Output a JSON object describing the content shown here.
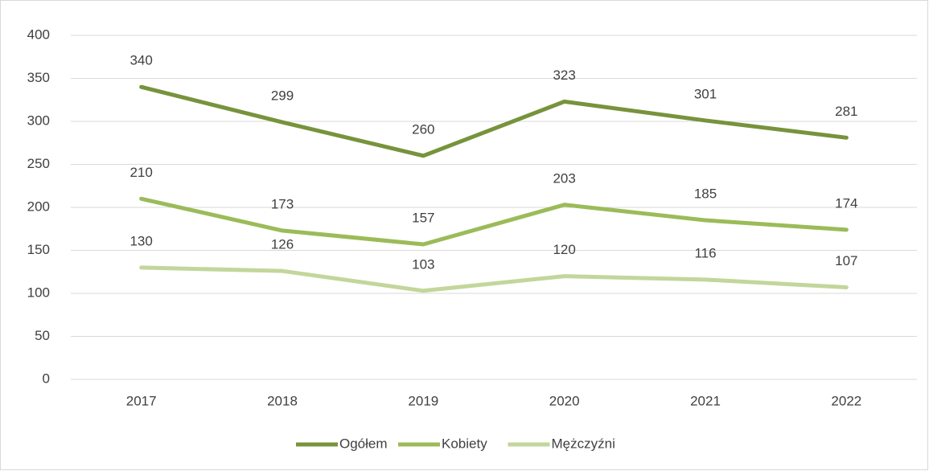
{
  "chart_data": {
    "type": "line",
    "categories": [
      "2017",
      "2018",
      "2019",
      "2020",
      "2021",
      "2022"
    ],
    "series": [
      {
        "name": "Ogółem",
        "color": "#77933c",
        "values": [
          340,
          299,
          260,
          323,
          301,
          281
        ]
      },
      {
        "name": "Kobiety",
        "color": "#9bbb59",
        "values": [
          210,
          173,
          157,
          203,
          185,
          174
        ]
      },
      {
        "name": "Mężczyźni",
        "color": "#c3d69b",
        "values": [
          130,
          126,
          103,
          120,
          116,
          107
        ]
      }
    ],
    "ylim": [
      0,
      400
    ],
    "yticks": [
      0,
      50,
      100,
      150,
      200,
      250,
      300,
      350,
      400
    ],
    "grid": true,
    "legend": "bottom"
  }
}
